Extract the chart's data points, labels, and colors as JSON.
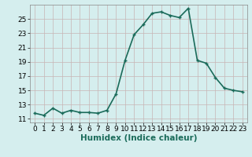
{
  "x": [
    0,
    1,
    2,
    3,
    4,
    5,
    6,
    7,
    8,
    9,
    10,
    11,
    12,
    13,
    14,
    15,
    16,
    17,
    18,
    19,
    20,
    21,
    22,
    23
  ],
  "y": [
    11.8,
    11.5,
    12.5,
    11.8,
    12.2,
    11.9,
    11.9,
    11.8,
    12.2,
    14.5,
    19.2,
    22.8,
    24.2,
    25.8,
    26.0,
    25.5,
    25.2,
    26.5,
    19.2,
    18.8,
    16.8,
    15.3,
    15.0,
    14.8
  ],
  "line_color": "#1a6b5a",
  "marker": "+",
  "marker_size": 3,
  "marker_linewidth": 1.0,
  "xlabel": "Humidex (Indice chaleur)",
  "xlim": [
    -0.5,
    23.5
  ],
  "ylim": [
    10.5,
    27.0
  ],
  "yticks": [
    11,
    13,
    15,
    17,
    19,
    21,
    23,
    25
  ],
  "xticks": [
    0,
    1,
    2,
    3,
    4,
    5,
    6,
    7,
    8,
    9,
    10,
    11,
    12,
    13,
    14,
    15,
    16,
    17,
    18,
    19,
    20,
    21,
    22,
    23
  ],
  "bg_color": "#d5eeee",
  "grid_color_v": "#c8b4b4",
  "grid_color_h": "#c8b4b4",
  "line_width": 1.2,
  "tick_fontsize": 6.5,
  "xlabel_fontsize": 7.5
}
